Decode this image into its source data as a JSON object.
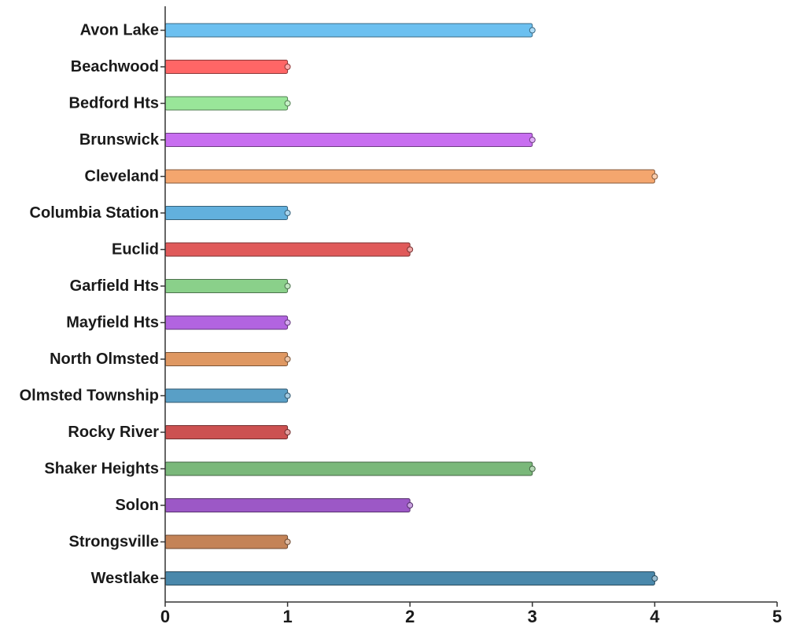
{
  "chart_data": {
    "type": "bar",
    "orientation": "horizontal",
    "title": "",
    "xlabel": "",
    "ylabel": "",
    "categories": [
      "Avon Lake",
      "Beachwood",
      "Bedford Hts",
      "Brunswick",
      "Cleveland",
      "Columbia Station",
      "Euclid",
      "Garfield Hts",
      "Mayfield Hts",
      "North Olmsted",
      "Olmsted Township",
      "Rocky River",
      "Shaker Heights",
      "Solon",
      "Strongsville",
      "Westlake"
    ],
    "values": [
      3,
      1,
      1,
      3,
      4,
      1,
      2,
      1,
      1,
      1,
      1,
      1,
      3,
      2,
      1,
      4
    ],
    "colors": [
      "#6cc0f0",
      "#ff6666",
      "#99e699",
      "#c86ef0",
      "#f4a66e",
      "#62b0dd",
      "#e05a5a",
      "#8ad08a",
      "#b264e0",
      "#df9862",
      "#599fc6",
      "#cc5151",
      "#7ab87a",
      "#9c58c6",
      "#c48357",
      "#4a88ab"
    ],
    "xlim": [
      0,
      5
    ],
    "xticks": [
      0,
      1,
      2,
      3,
      4,
      5
    ],
    "grid": false,
    "legend": "none"
  }
}
